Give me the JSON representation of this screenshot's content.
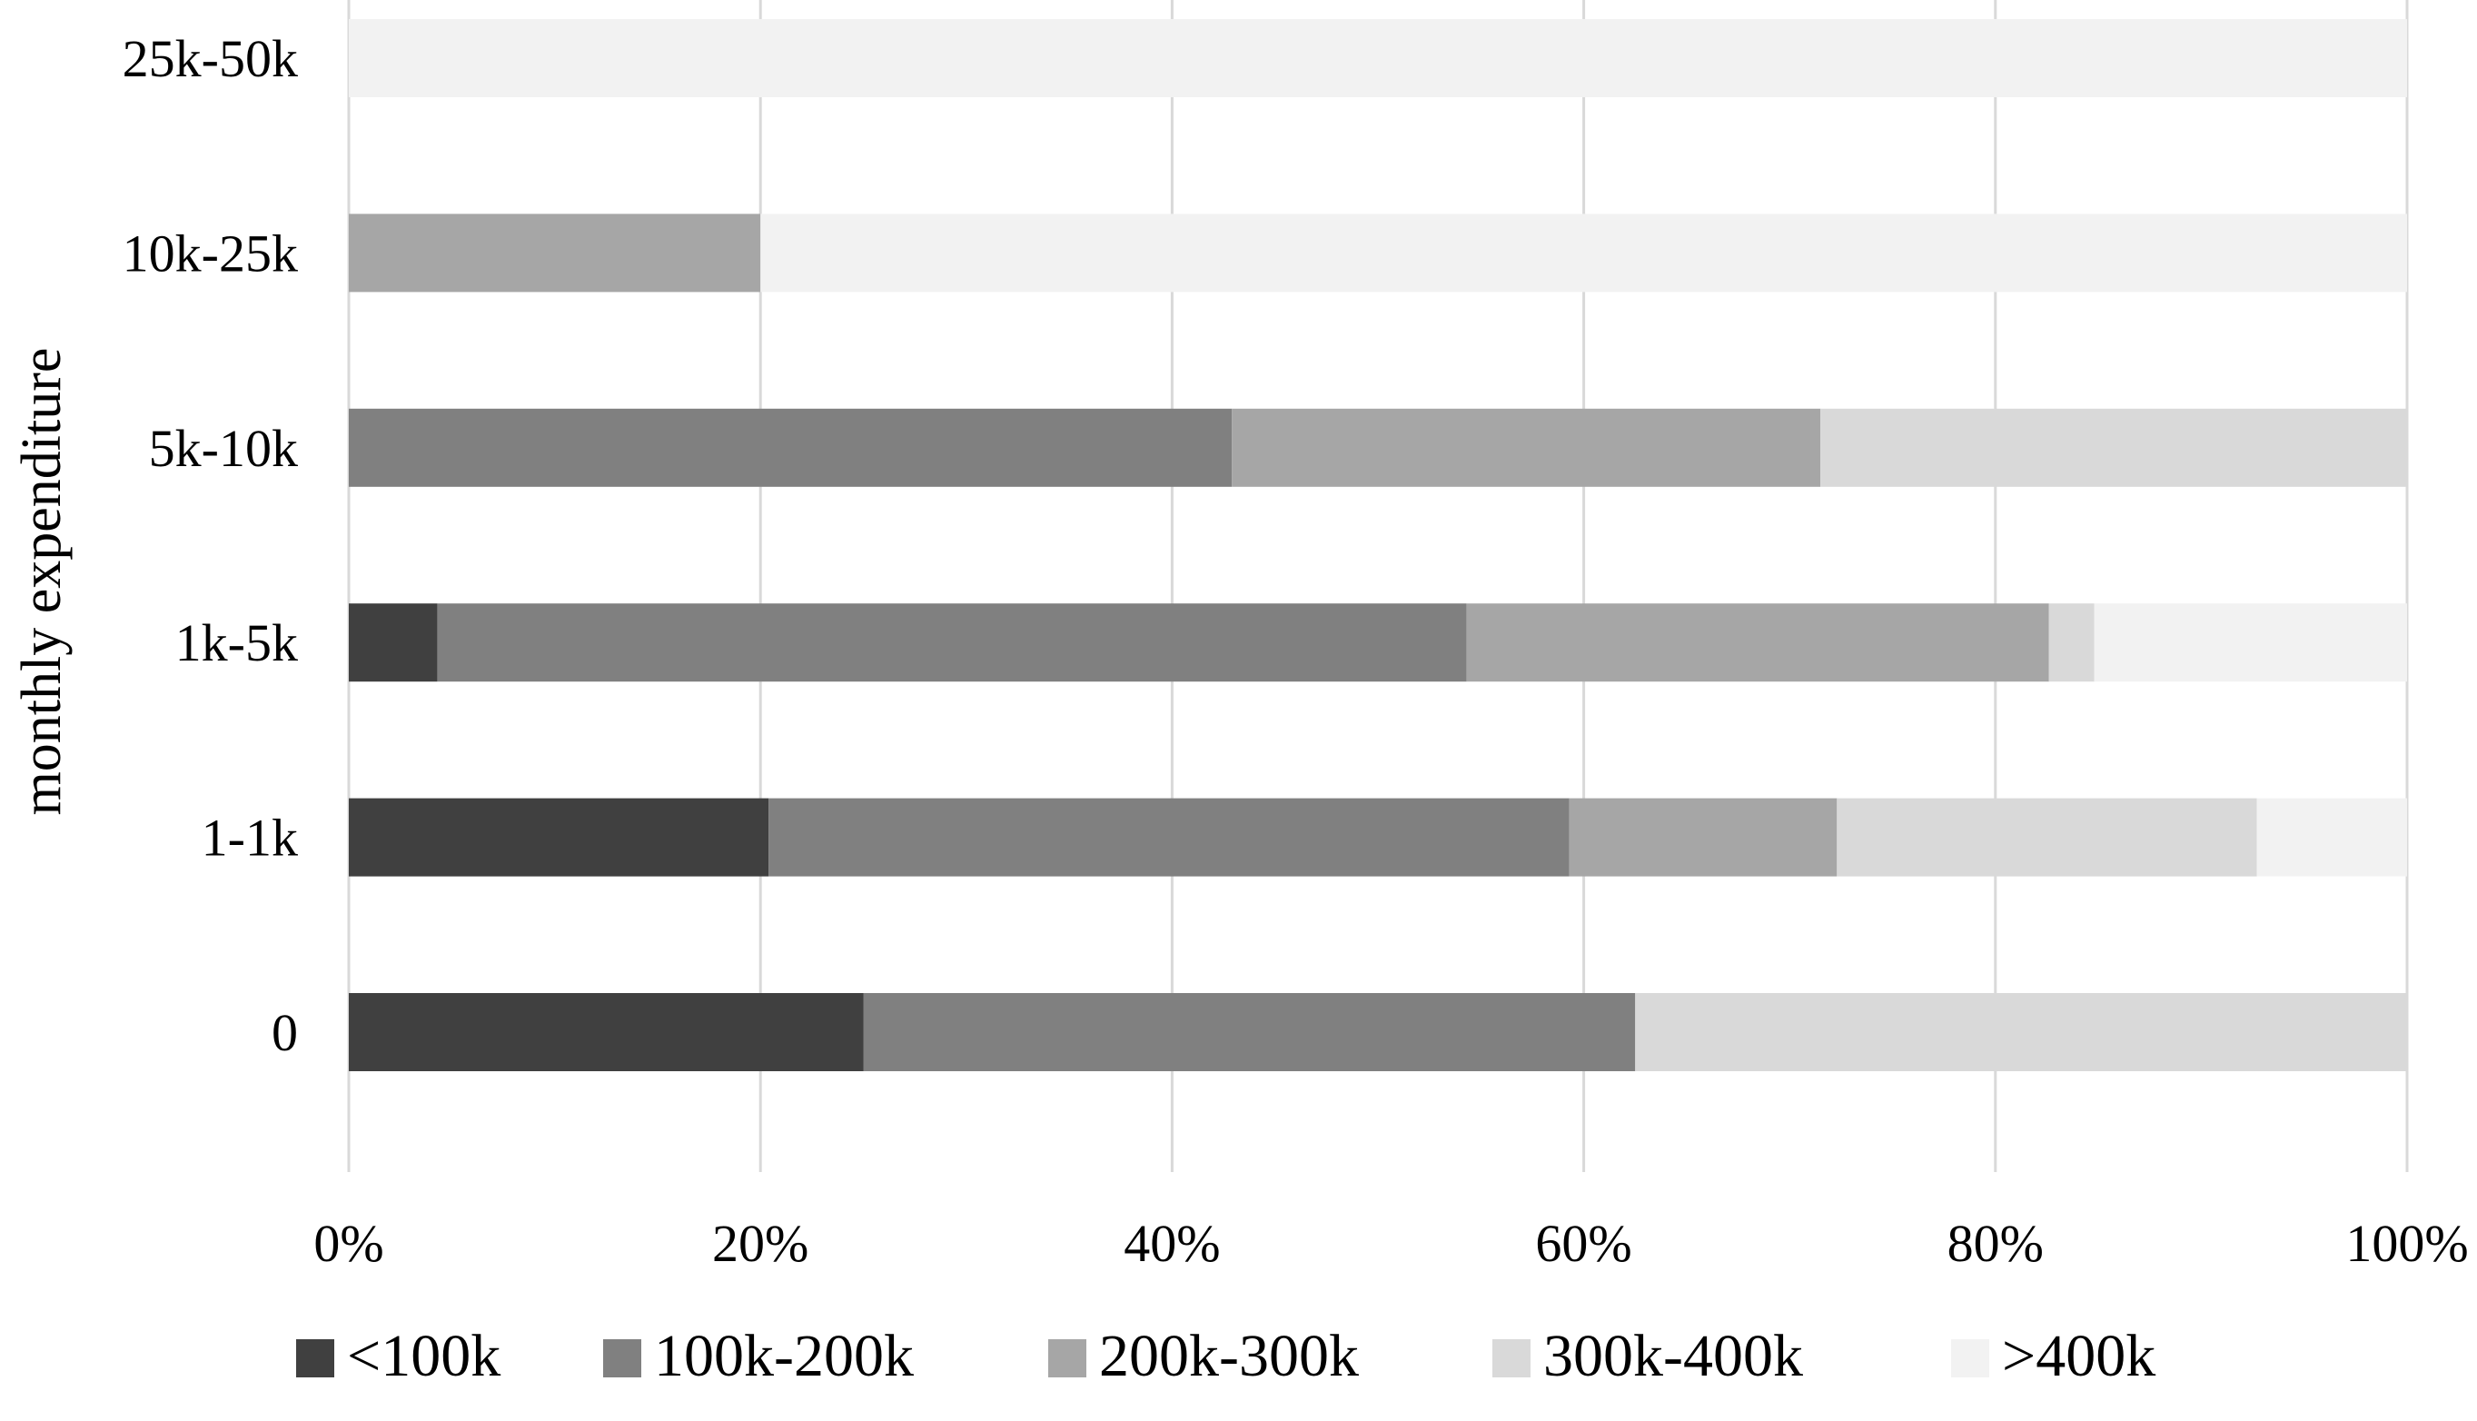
{
  "chart_data": {
    "type": "bar",
    "orientation": "horizontal",
    "stacked": "percent",
    "title": "",
    "xlabel": "",
    "ylabel": "monthly expenditure",
    "xlim": [
      0,
      100
    ],
    "x_ticks": [
      "0%",
      "20%",
      "40%",
      "60%",
      "80%",
      "100%"
    ],
    "categories": [
      "25k-50k",
      "10k-25k",
      "5k-10k",
      "1k-5k",
      "1-1k",
      "0"
    ],
    "series": [
      {
        "name": "<100k",
        "color": "#404040",
        "values": [
          0,
          0,
          0,
          4.3,
          20.4,
          25.0
        ]
      },
      {
        "name": "100k-200k",
        "color": "#808080",
        "values": [
          0,
          0,
          42.9,
          50.0,
          38.9,
          37.5
        ]
      },
      {
        "name": "200k-300k",
        "color": "#a6a6a6",
        "values": [
          0,
          20.0,
          28.6,
          28.3,
          13.0,
          0
        ]
      },
      {
        "name": "300k-400k",
        "color": "#d9d9d9",
        "values": [
          0,
          0,
          28.5,
          2.2,
          20.4,
          37.5
        ]
      },
      {
        "name": ">400k",
        "color": "#f2f2f2",
        "values": [
          100,
          80.0,
          0,
          15.2,
          7.3,
          0
        ]
      }
    ],
    "grid": "vertical",
    "gridline_color": "#d9d9d9",
    "legend_position": "bottom"
  }
}
